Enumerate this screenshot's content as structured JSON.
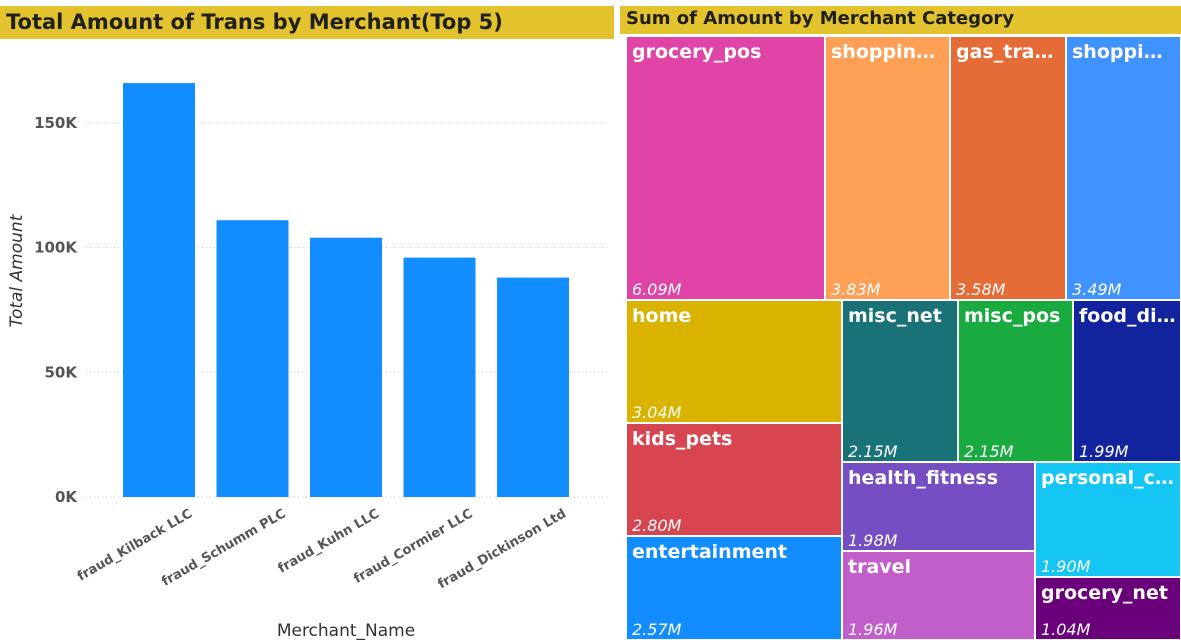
{
  "chart_data": [
    {
      "type": "bar",
      "title": "Total Amount of Trans by Merchant(Top 5)",
      "xlabel": "Merchant_Name",
      "ylabel": "Total Amount",
      "categories": [
        "fraud_Kilback LLC",
        "fraud_Schumm PLC",
        "fraud_Kuhn LLC",
        "fraud_Cormier LLC",
        "fraud_Dickinson Ltd"
      ],
      "values": [
        166000,
        111000,
        104000,
        96000,
        88000
      ],
      "ylim": [
        0,
        178000
      ],
      "yticks": [
        0,
        50000,
        100000,
        150000
      ],
      "ytick_labels": [
        "0K",
        "50K",
        "100K",
        "150K"
      ],
      "grid": true,
      "color": "#118dff"
    },
    {
      "type": "treemap",
      "title": "Sum of Amount by Merchant Category",
      "tiles": [
        {
          "label": "grocery_pos",
          "value": 6090000,
          "value_label": "6.09M",
          "color": "#e044a7"
        },
        {
          "label": "shopping...",
          "value": 3830000,
          "value_label": "3.83M",
          "color": "#fe9f56"
        },
        {
          "label": "gas_tran...",
          "value": 3580000,
          "value_label": "3.58M",
          "color": "#e66c37"
        },
        {
          "label": "shoppin...",
          "value": 3490000,
          "value_label": "3.49M",
          "color": "#4092ff"
        },
        {
          "label": "home",
          "value": 3040000,
          "value_label": "3.04M",
          "color": "#d9b300"
        },
        {
          "label": "misc_net",
          "value": 2150000,
          "value_label": "2.15M",
          "color": "#197278"
        },
        {
          "label": "misc_pos",
          "value": 2150000,
          "value_label": "2.15M",
          "color": "#1aab40"
        },
        {
          "label": "food_di...",
          "value": 1990000,
          "value_label": "1.99M",
          "color": "#12239e"
        },
        {
          "label": "kids_pets",
          "value": 2800000,
          "value_label": "2.80M",
          "color": "#d64550"
        },
        {
          "label": "health_fitness",
          "value": 1980000,
          "value_label": "1.98M",
          "color": "#744ec2"
        },
        {
          "label": "personal_care",
          "value": 1900000,
          "value_label": "1.90M",
          "color": "#15c6f4"
        },
        {
          "label": "entertainment",
          "value": 2570000,
          "value_label": "2.57M",
          "color": "#118dff"
        },
        {
          "label": "travel",
          "value": 1960000,
          "value_label": "1.96M",
          "color": "#c15ec9"
        },
        {
          "label": "grocery_net",
          "value": 1040000,
          "value_label": "1.04M",
          "color": "#6b007b"
        }
      ]
    }
  ]
}
